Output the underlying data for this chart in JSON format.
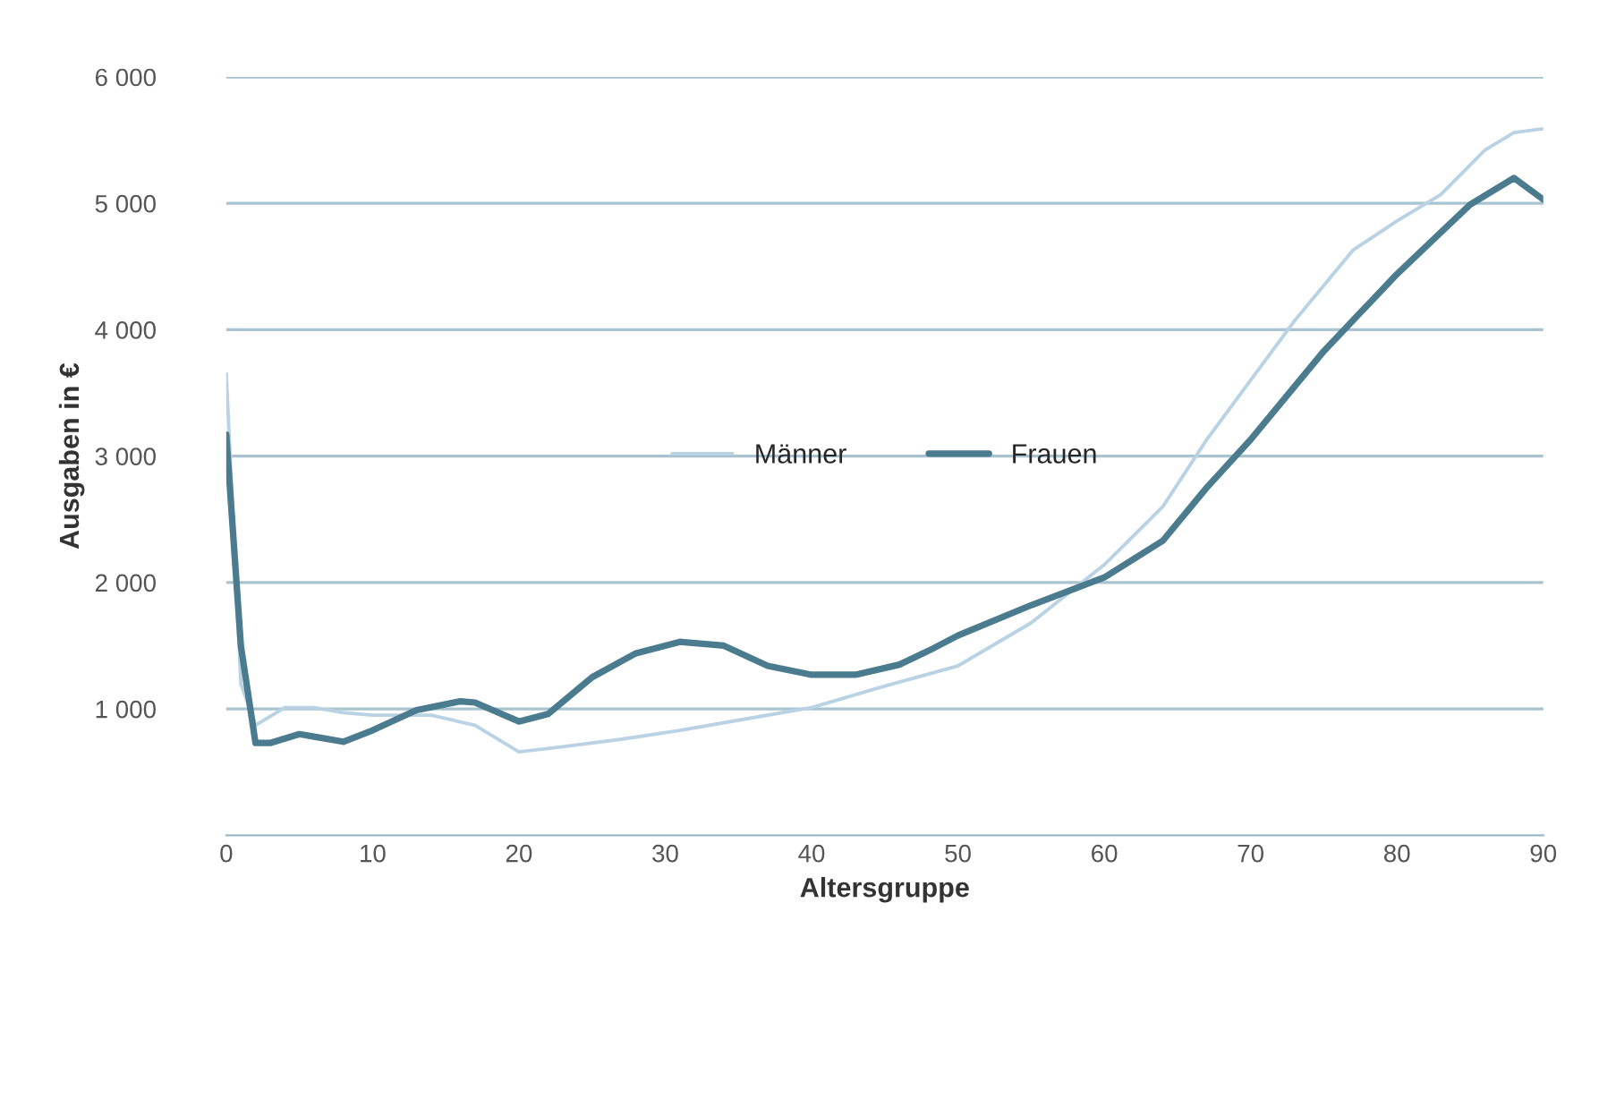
{
  "chart_data": {
    "type": "line",
    "xlabel": "Altersgruppe",
    "ylabel": "Ausgaben in €",
    "xlim": [
      0,
      90
    ],
    "xticks": [
      0,
      10,
      20,
      30,
      40,
      50,
      60,
      70,
      80,
      90
    ],
    "ylim": [
      0,
      6000
    ],
    "yticks": [
      {
        "value": 1000,
        "label": "1 000"
      },
      {
        "value": 2000,
        "label": "2 000"
      },
      {
        "value": 3000,
        "label": "3 000"
      },
      {
        "value": 4000,
        "label": "4 000"
      },
      {
        "value": 5000,
        "label": "5 000"
      },
      {
        "value": 6000,
        "label": "6 000"
      }
    ],
    "grid": "y",
    "legend": "center",
    "marker": "none",
    "line_style": "solid",
    "series": [
      {
        "name": "Männer",
        "color": "#b9d3e4",
        "x": [
          0,
          1,
          2,
          4,
          6,
          8,
          10,
          14,
          17,
          20,
          23,
          27,
          31,
          35,
          40,
          45,
          50,
          55,
          60,
          64,
          67,
          70,
          73,
          77,
          80,
          83,
          86,
          88,
          90
        ],
        "values": [
          3650,
          1200,
          870,
          1010,
          1010,
          970,
          950,
          950,
          870,
          660,
          700,
          760,
          830,
          910,
          1010,
          1180,
          1340,
          1680,
          2140,
          2600,
          3130,
          3600,
          4070,
          4630,
          4860,
          5070,
          5420,
          5560,
          5590
        ]
      },
      {
        "name": "Frauen",
        "color": "#4b7b8e",
        "x": [
          0,
          1,
          2,
          3,
          5,
          6,
          8,
          10,
          13,
          16,
          17,
          20,
          22,
          25,
          28,
          31,
          34,
          37,
          40,
          43,
          46,
          48,
          50,
          55,
          60,
          64,
          67,
          70,
          75,
          80,
          85,
          88,
          90
        ],
        "values": [
          3170,
          1500,
          730,
          730,
          800,
          780,
          740,
          830,
          990,
          1060,
          1050,
          900,
          960,
          1250,
          1440,
          1530,
          1500,
          1340,
          1270,
          1270,
          1350,
          1460,
          1580,
          1820,
          2040,
          2330,
          2750,
          3130,
          3830,
          4440,
          4990,
          5200,
          5030
        ]
      }
    ]
  }
}
